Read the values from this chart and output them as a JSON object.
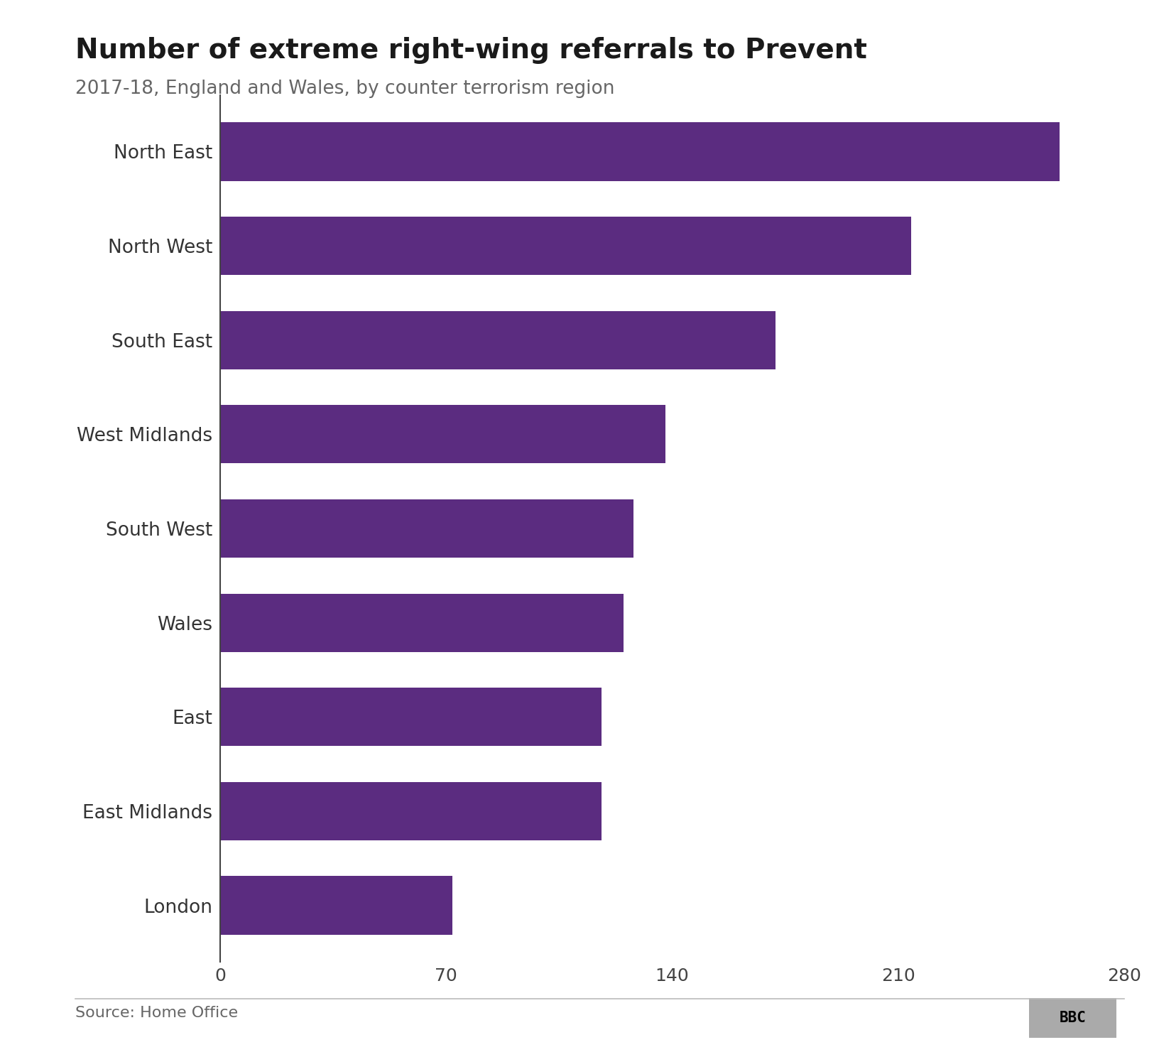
{
  "title": "Number of extreme right-wing referrals to Prevent",
  "subtitle": "2017-18, England and Wales, by counter terrorism region",
  "categories": [
    "North East",
    "North West",
    "South East",
    "West Midlands",
    "South West",
    "Wales",
    "East",
    "East Midlands",
    "London"
  ],
  "values": [
    260,
    214,
    172,
    138,
    128,
    125,
    118,
    118,
    72
  ],
  "bar_color": "#5b2c80",
  "xlim": [
    0,
    280
  ],
  "xticks": [
    0,
    70,
    140,
    210,
    280
  ],
  "source_text": "Source: Home Office",
  "bbc_text": "BBC",
  "background_color": "#ffffff",
  "title_fontsize": 28,
  "subtitle_fontsize": 19,
  "tick_fontsize": 18,
  "label_fontsize": 19,
  "source_fontsize": 16
}
